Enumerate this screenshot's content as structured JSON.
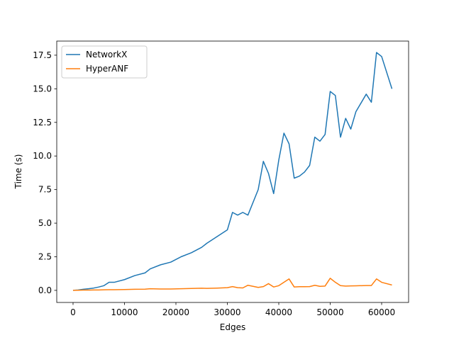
{
  "chart_data": {
    "type": "line",
    "x_label": "Edges",
    "y_label": "Time (s)",
    "x": [
      0,
      1000,
      2000,
      3000,
      4000,
      5000,
      6000,
      7000,
      8000,
      10000,
      12000,
      14000,
      15000,
      17000,
      19000,
      21000,
      23000,
      25000,
      26000,
      28000,
      30000,
      31000,
      32000,
      33000,
      34000,
      36000,
      37000,
      38000,
      39000,
      40000,
      41000,
      42000,
      43000,
      44000,
      45000,
      46000,
      47000,
      48000,
      49000,
      50000,
      51000,
      52000,
      53000,
      54000,
      55000,
      57000,
      58000,
      59000,
      60000,
      62000
    ],
    "series": [
      {
        "name": "NetworkX",
        "color": "#1f77b4",
        "values": [
          0,
          0.03,
          0.08,
          0.12,
          0.17,
          0.25,
          0.35,
          0.6,
          0.6,
          0.8,
          1.1,
          1.3,
          1.6,
          1.9,
          2.1,
          2.5,
          2.8,
          3.2,
          3.5,
          4.0,
          4.5,
          5.8,
          5.6,
          5.8,
          5.6,
          7.5,
          9.6,
          8.7,
          7.2,
          9.7,
          11.7,
          10.9,
          8.35,
          8.5,
          8.8,
          9.3,
          11.4,
          11.1,
          11.6,
          14.8,
          14.5,
          11.4,
          12.8,
          12.0,
          13.3,
          14.6,
          14.0,
          17.7,
          17.4,
          15.0
        ]
      },
      {
        "name": "HyperANF",
        "color": "#ff7f0e",
        "values": [
          0,
          0.01,
          0.02,
          0.02,
          0.03,
          0.03,
          0.04,
          0.05,
          0.05,
          0.06,
          0.08,
          0.09,
          0.12,
          0.1,
          0.1,
          0.12,
          0.14,
          0.16,
          0.15,
          0.17,
          0.2,
          0.28,
          0.2,
          0.18,
          0.38,
          0.22,
          0.28,
          0.5,
          0.25,
          0.35,
          0.6,
          0.85,
          0.25,
          0.27,
          0.27,
          0.28,
          0.38,
          0.3,
          0.32,
          0.9,
          0.6,
          0.35,
          0.32,
          0.33,
          0.34,
          0.36,
          0.36,
          0.85,
          0.6,
          0.4
        ]
      }
    ],
    "xlim": [
      -3170,
      65240
    ],
    "ylim": [
      -0.9,
      18.55
    ],
    "xticks": [
      0,
      10000,
      20000,
      30000,
      40000,
      50000,
      60000
    ],
    "yticks": [
      {
        "value": 0,
        "label": "0.0"
      },
      2.5,
      {
        "value": 5,
        "label": "5.0"
      },
      7.5,
      {
        "value": 10,
        "label": "10.0"
      },
      12.5,
      {
        "value": 15,
        "label": "15.0"
      },
      17.5
    ],
    "legend": "upper left"
  }
}
